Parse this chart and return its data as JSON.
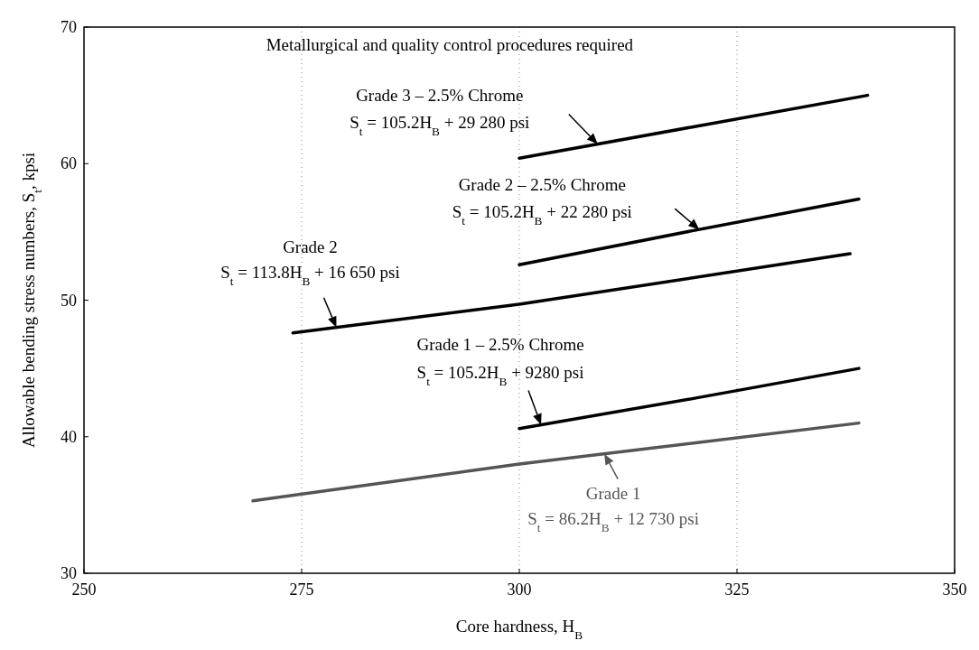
{
  "chart_data": {
    "type": "line",
    "title": "Metallurgical and quality control procedures required",
    "xlabel": "Core hardness, H$_{B}$",
    "ylabel": "Allowable bending stress numbers, S$_{t}$, kpsi",
    "xlim": [
      250,
      350
    ],
    "xticks": [
      250,
      275,
      300,
      325,
      350
    ],
    "ylim": [
      30,
      70
    ],
    "yticks": [
      30,
      40,
      50,
      60,
      70
    ],
    "grid": "x",
    "marker": "none",
    "line_style": "solid",
    "series": [
      {
        "color": "#000000",
        "x": [
          300,
          320,
          340
        ],
        "values": [
          60.4,
          62.7,
          65.0
        ]
      },
      {
        "color": "#000000",
        "x": [
          300,
          320,
          339
        ],
        "values": [
          52.6,
          55.1,
          57.4
        ]
      },
      {
        "color": "#000000",
        "x": [
          274,
          300,
          338
        ],
        "values": [
          47.6,
          49.7,
          53.4
        ]
      },
      {
        "color": "#000000",
        "x": [
          300,
          320,
          339
        ],
        "values": [
          40.6,
          42.8,
          45.0
        ]
      },
      {
        "color": "#555555",
        "x": [
          269.4,
          300,
          339
        ],
        "values": [
          35.3,
          38.0,
          41.0
        ]
      }
    ],
    "annotations": [
      "Grade 3 – 2.5% Chrome",
      "S$_{t}$ = 105.2H$_{B}$ + 29 280 psi",
      "Grade 2 – 2.5% Chrome",
      "S$_{t}$ = 105.2H$_{B}$ + 22 280 psi",
      "Grade 2",
      "S$_{t}$ = 113.8H$_{B}$ + 16 650 psi",
      "Grade 1 – 2.5% Chrome",
      "S$_{t}$ = 105.2H$_{B}$ + 9280 psi",
      "Grade 1",
      "S$_{t}$ = 86.2H$_{B}$ + 12 730 psi"
    ]
  }
}
